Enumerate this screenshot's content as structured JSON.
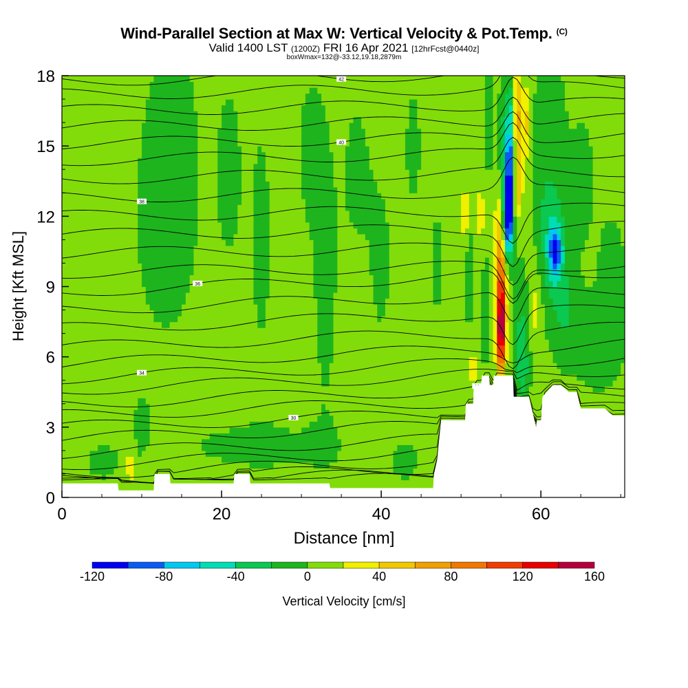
{
  "chart_data": {
    "type": "heatmap",
    "title": "Wind-Parallel Section at Max W: Vertical Velocity & Pot.Temp.",
    "title_mark": "(C)",
    "subtitle_parts": [
      "Valid 1400 LST",
      "(1200Z)",
      "FRI 16 Apr 2021",
      "[12hrFcst@0440z]"
    ],
    "subtitle2": "boxWmax=132@-33.12,19.18,2879m",
    "xlabel": "Distance [nm]",
    "ylabel": "Height [Kft MSL]",
    "xlim": [
      0,
      70.5
    ],
    "ylim": [
      0,
      18
    ],
    "xticks": [
      0,
      20,
      40,
      60
    ],
    "yticks": [
      0,
      3,
      6,
      9,
      12,
      15,
      18
    ],
    "colorbar": {
      "label": "Vertical Velocity [cm/s]",
      "ticks": [
        -120,
        -80,
        -40,
        0,
        40,
        80,
        120,
        160
      ],
      "levels": [
        -120,
        -100,
        -80,
        -60,
        -40,
        -20,
        0,
        20,
        40,
        60,
        80,
        100,
        120,
        140,
        160
      ],
      "colors": [
        "#0000f0",
        "#0a5cf0",
        "#00c8f0",
        "#00dcb4",
        "#0ac850",
        "#1eb41e",
        "#82dc0a",
        "#f0f000",
        "#f0c800",
        "#f0a000",
        "#f07800",
        "#f03c00",
        "#e60000",
        "#b4003c"
      ]
    },
    "terrain_kft": [
      [
        0,
        0.6
      ],
      [
        7,
        0.6
      ],
      [
        7.1,
        0.3
      ],
      [
        11.5,
        0.3
      ],
      [
        11.6,
        1.0
      ],
      [
        13.5,
        1.0
      ],
      [
        13.6,
        0.6
      ],
      [
        21.5,
        0.6
      ],
      [
        21.6,
        1.0
      ],
      [
        23.5,
        1.0
      ],
      [
        23.6,
        0.6
      ],
      [
        33.5,
        0.6
      ],
      [
        33.6,
        0.4
      ],
      [
        46.5,
        0.4
      ],
      [
        46.6,
        1.0
      ],
      [
        47,
        1.6
      ],
      [
        47.5,
        3.3
      ],
      [
        50.5,
        3.3
      ],
      [
        50.6,
        4.0
      ],
      [
        51.5,
        4.0
      ],
      [
        51.6,
        4.8
      ],
      [
        52.5,
        4.8
      ],
      [
        52.6,
        5.2
      ],
      [
        53.5,
        5.2
      ],
      [
        53.6,
        4.8
      ],
      [
        54,
        4.8
      ],
      [
        54.1,
        5.2
      ],
      [
        55.5,
        5.2
      ],
      [
        56.5,
        5.2
      ],
      [
        56.6,
        4.3
      ],
      [
        58.5,
        4.3
      ],
      [
        59.4,
        3.0
      ],
      [
        59.5,
        3.3
      ],
      [
        60,
        3.3
      ],
      [
        60.2,
        4.3
      ],
      [
        61.5,
        4.8
      ],
      [
        62.5,
        4.8
      ],
      [
        63.5,
        4.5
      ],
      [
        64.5,
        4.5
      ],
      [
        65,
        3.8
      ],
      [
        68,
        3.8
      ],
      [
        69,
        3.5
      ],
      [
        70.5,
        3.5
      ]
    ],
    "isentropes": [
      {
        "base": 0.3
      },
      {
        "base": 0.5
      },
      {
        "base": 0.7
      },
      {
        "base": 1.0
      },
      {
        "base": 1.4
      },
      {
        "base": 1.9
      },
      {
        "base": 2.5
      },
      {
        "base": 3.0,
        "label": "30"
      },
      {
        "base": 3.5
      },
      {
        "base": 4.0,
        "label": "32"
      },
      {
        "base": 4.6
      },
      {
        "base": 5.1,
        "label": "34"
      },
      {
        "base": 5.7
      },
      {
        "base": 6.4
      },
      {
        "base": 7.2
      },
      {
        "base": 8.0
      },
      {
        "base": 8.8,
        "label": "36"
      },
      {
        "base": 9.6
      },
      {
        "base": 10.4
      },
      {
        "base": 11.2
      },
      {
        "base": 12.0
      },
      {
        "base": 12.8,
        "label": "38"
      },
      {
        "base": 13.6
      },
      {
        "base": 14.4
      },
      {
        "base": 15.1,
        "label": "40"
      },
      {
        "base": 15.8
      },
      {
        "base": 16.5
      },
      {
        "base": 17.2
      },
      {
        "base": 17.8,
        "label": "42"
      }
    ],
    "w_features": [
      {
        "x": 2,
        "y": 16,
        "rx": 3.0,
        "ry": 2.5,
        "w": 5
      },
      {
        "x": 13,
        "y": 12,
        "rx": 5.0,
        "ry": 6.5,
        "w": -10
      },
      {
        "x": 14,
        "y": 16,
        "rx": 2.5,
        "ry": 4.0,
        "w": -8
      },
      {
        "x": 21,
        "y": 14,
        "rx": 2.0,
        "ry": 5.0,
        "w": -8
      },
      {
        "x": 25,
        "y": 11,
        "rx": 1.8,
        "ry": 7.0,
        "w": -8
      },
      {
        "x": 31,
        "y": 15,
        "rx": 2.0,
        "ry": 3.5,
        "w": -8
      },
      {
        "x": 33,
        "y": 9,
        "rx": 2.2,
        "ry": 8.0,
        "w": -8
      },
      {
        "x": 37,
        "y": 14,
        "rx": 2.0,
        "ry": 4.0,
        "w": -8
      },
      {
        "x": 40,
        "y": 10,
        "rx": 1.8,
        "ry": 4.5,
        "w": -8
      },
      {
        "x": 44,
        "y": 15,
        "rx": 1.5,
        "ry": 4.0,
        "w": -8
      },
      {
        "x": 47,
        "y": 10,
        "rx": 1.2,
        "ry": 5.0,
        "w": -7
      },
      {
        "x": 25,
        "y": 2.2,
        "rx": 11,
        "ry": 1.2,
        "w": -9
      },
      {
        "x": 5,
        "y": 1.5,
        "rx": 4,
        "ry": 1.5,
        "w": -7
      },
      {
        "x": 10,
        "y": 3.3,
        "rx": 1.2,
        "ry": 1.5,
        "w": -7
      },
      {
        "x": 8.5,
        "y": 1.3,
        "rx": 0.5,
        "ry": 0.9,
        "w": 28
      },
      {
        "x": 43,
        "y": 1.5,
        "rx": 2.5,
        "ry": 1.2,
        "w": -8
      },
      {
        "x": 49,
        "y": 2.5,
        "rx": 1.0,
        "ry": 1.0,
        "w": -8
      },
      {
        "x": 50.5,
        "y": 12,
        "rx": 0.5,
        "ry": 1.2,
        "w": 35
      },
      {
        "x": 52.5,
        "y": 12,
        "rx": 0.4,
        "ry": 1.5,
        "w": 30
      },
      {
        "x": 51.0,
        "y": 9.5,
        "rx": 0.6,
        "ry": 2.0,
        "w": -20
      },
      {
        "x": 53,
        "y": 8,
        "rx": 0.8,
        "ry": 3.0,
        "w": -12
      },
      {
        "x": 51.5,
        "y": 5.5,
        "rx": 0.4,
        "ry": 1.0,
        "w": 28
      },
      {
        "x": 53.5,
        "y": 16,
        "rx": 0.6,
        "ry": 2.0,
        "w": -20
      },
      {
        "x": 55,
        "y": 7.0,
        "rx": 0.55,
        "ry": 1.8,
        "w": 135
      },
      {
        "x": 55.2,
        "y": 9.0,
        "rx": 0.7,
        "ry": 2.2,
        "w": 85
      },
      {
        "x": 54.8,
        "y": 11.0,
        "rx": 0.6,
        "ry": 2.5,
        "w": 45
      },
      {
        "x": 55.5,
        "y": 12.5,
        "rx": 0.7,
        "ry": 4.5,
        "w": -55
      },
      {
        "x": 56,
        "y": 12.0,
        "rx": 0.45,
        "ry": 1.6,
        "w": -115
      },
      {
        "x": 56.2,
        "y": 14.5,
        "rx": 0.6,
        "ry": 1.8,
        "w": -80
      },
      {
        "x": 56.5,
        "y": 17.0,
        "rx": 0.6,
        "ry": 1.2,
        "w": -40
      },
      {
        "x": 57.0,
        "y": 16.5,
        "rx": 0.55,
        "ry": 2.0,
        "w": 75
      },
      {
        "x": 57.2,
        "y": 13.5,
        "rx": 0.5,
        "ry": 1.5,
        "w": 50
      },
      {
        "x": 58.3,
        "y": 16.0,
        "rx": 0.5,
        "ry": 1.5,
        "w": 38
      },
      {
        "x": 57.5,
        "y": 7.5,
        "rx": 0.8,
        "ry": 2.5,
        "w": -25
      },
      {
        "x": 57.8,
        "y": 5.5,
        "rx": 0.8,
        "ry": 1.5,
        "w": -30
      },
      {
        "x": 59.3,
        "y": 8.0,
        "rx": 0.7,
        "ry": 1.3,
        "w": 22
      },
      {
        "x": 61.5,
        "y": 11.0,
        "rx": 1.5,
        "ry": 2.8,
        "w": -45
      },
      {
        "x": 61.8,
        "y": 10.5,
        "rx": 0.8,
        "ry": 1.0,
        "w": -75
      },
      {
        "x": 63,
        "y": 8.0,
        "rx": 1.5,
        "ry": 2.0,
        "w": -25
      },
      {
        "x": 60,
        "y": 15.0,
        "rx": 1.0,
        "ry": 3.0,
        "w": -20
      },
      {
        "x": 62,
        "y": 16.5,
        "rx": 1.0,
        "ry": 2.0,
        "w": -12
      },
      {
        "x": 65,
        "y": 13.5,
        "rx": 2.5,
        "ry": 4.0,
        "w": -9
      },
      {
        "x": 67,
        "y": 6.5,
        "rx": 3.0,
        "ry": 2.0,
        "w": -15
      },
      {
        "x": 69,
        "y": 9.0,
        "rx": 1.5,
        "ry": 2.5,
        "w": -20
      }
    ]
  }
}
